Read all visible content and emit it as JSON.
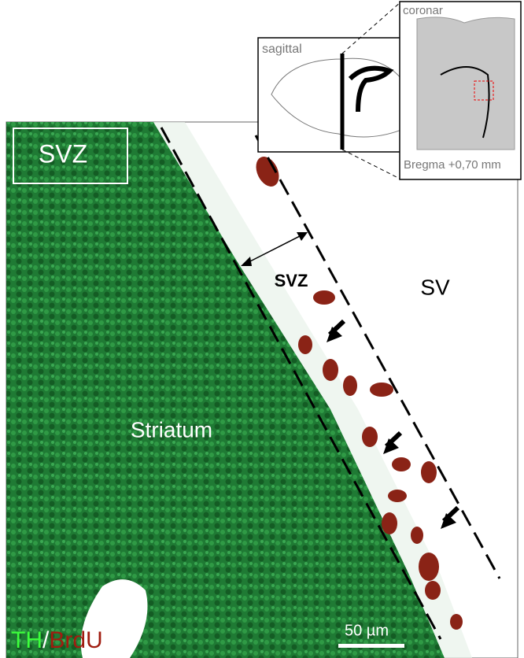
{
  "panel": {
    "label": "SVZ"
  },
  "insets": {
    "sagittal": "sagittal",
    "coronar": "coronar",
    "bregma": "Bregma +0,70 mm"
  },
  "annotations": {
    "svz": "SVZ",
    "sv": "SV",
    "striatum": "Striatum"
  },
  "legend": {
    "th": "TH",
    "separator": "/",
    "brdu": "BrdU"
  },
  "scale_bar": "50 µm"
}
